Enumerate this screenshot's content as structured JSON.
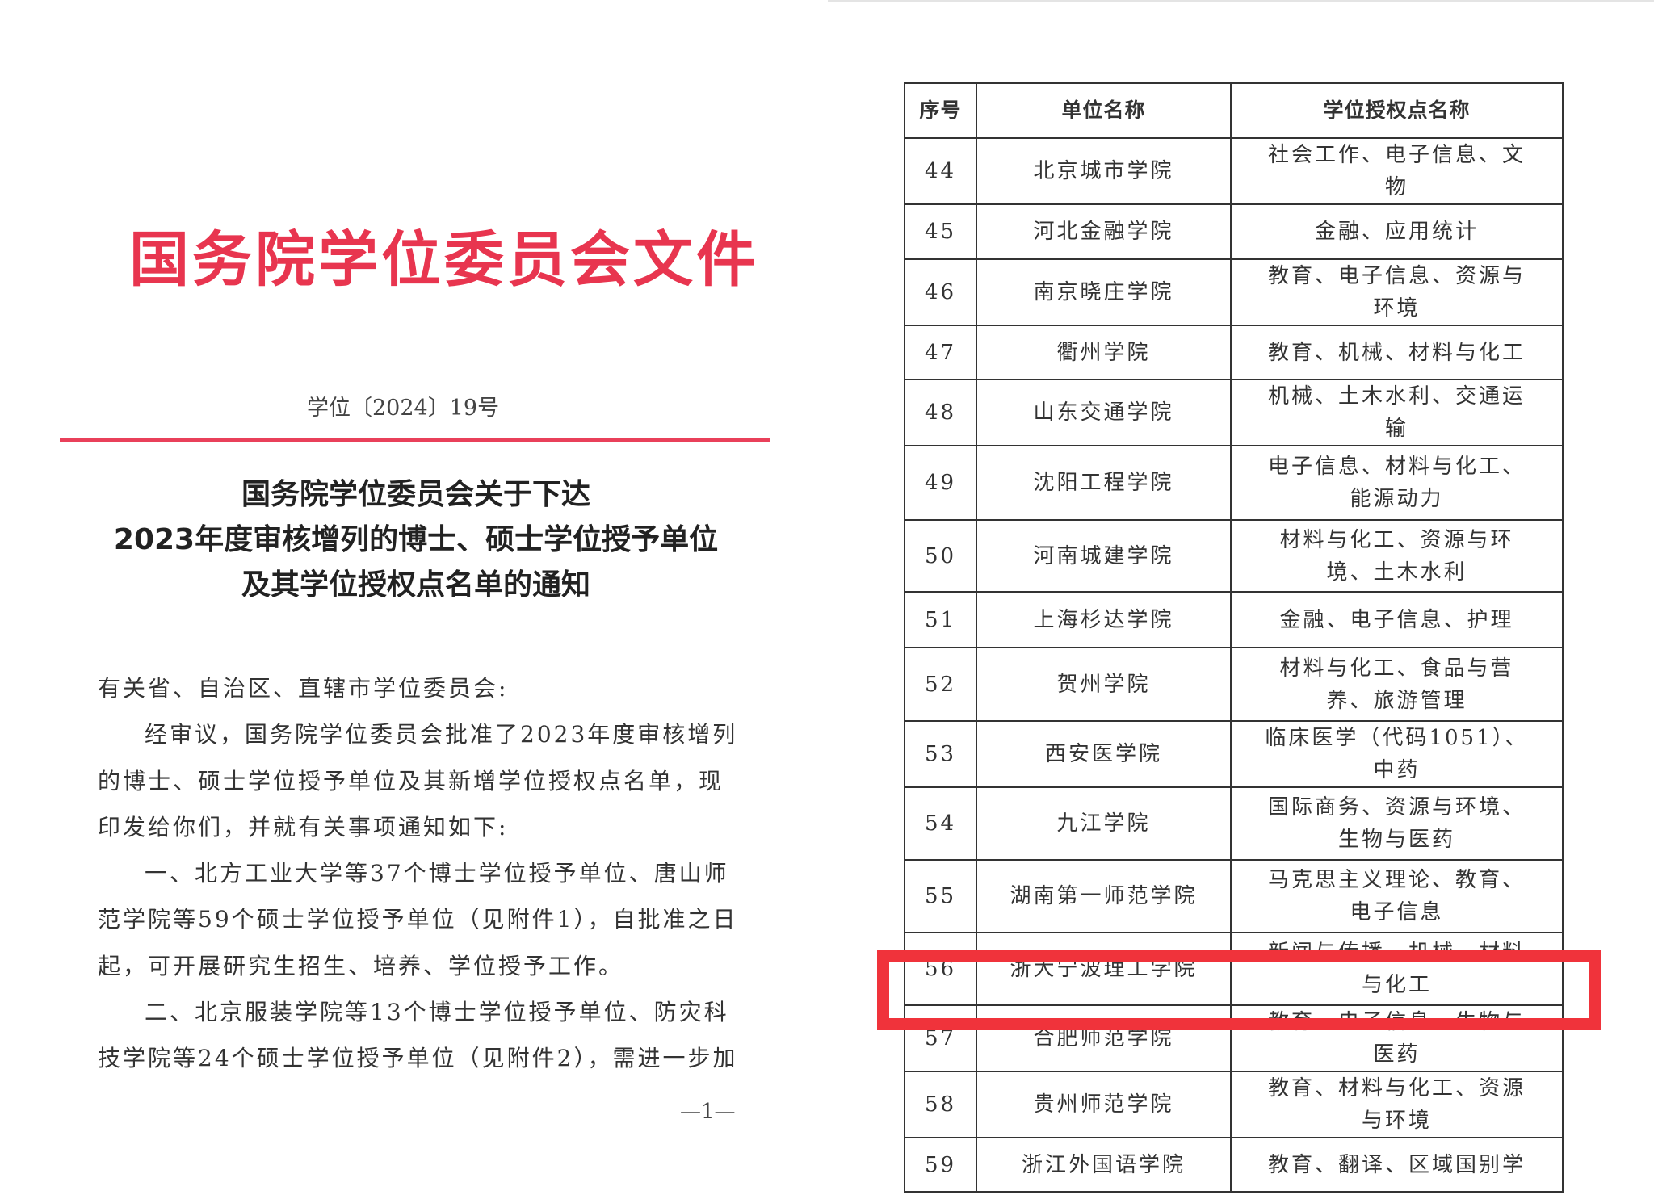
{
  "left_page": {
    "header_title": "国务院学位委员会文件",
    "doc_number": "学位〔2024〕19号",
    "heading_lines": [
      "国务院学位委员会关于下达",
      "2023年度审核增列的博士、硕士学位授予单位",
      "及其学位授权点名单的通知"
    ],
    "salutation": "有关省、自治区、直辖市学位委员会:",
    "paragraphs": [
      "经审议，国务院学位委员会批准了2023年度审核增列的博士、硕士学位授予单位及其新增学位授权点名单，现印发给你们，并就有关事项通知如下:",
      "一、北方工业大学等37个博士学位授予单位、唐山师范学院等59个硕士学位授予单位（见附件1），自批准之日起，可开展研究生招生、培养、学位授予工作。",
      "二、北京服装学院等13个博士学位授予单位、防灾科技学院等24个硕士学位授予单位（见附件2），需进一步加"
    ],
    "page_number": "—1—"
  },
  "table": {
    "headers": [
      "序号",
      "单位名称",
      "学位授权点名称"
    ],
    "rows": [
      {
        "no": "44",
        "unit": "北京城市学院",
        "points": "社会工作、电子信息、文物"
      },
      {
        "no": "45",
        "unit": "河北金融学院",
        "points": "金融、应用统计"
      },
      {
        "no": "46",
        "unit": "南京晓庄学院",
        "points": "教育、电子信息、资源与环境"
      },
      {
        "no": "47",
        "unit": "衢州学院",
        "points": "教育、机械、材料与化工"
      },
      {
        "no": "48",
        "unit": "山东交通学院",
        "points": "机械、土木水利、交通运输"
      },
      {
        "no": "49",
        "unit": "沈阳工程学院",
        "points": "电子信息、材料与化工、能源动力"
      },
      {
        "no": "50",
        "unit": "河南城建学院",
        "points": "材料与化工、资源与环境、土木水利"
      },
      {
        "no": "51",
        "unit": "上海杉达学院",
        "points": "金融、电子信息、护理"
      },
      {
        "no": "52",
        "unit": "贺州学院",
        "points": "材料与化工、食品与营养、旅游管理"
      },
      {
        "no": "53",
        "unit": "西安医学院",
        "points": "临床医学（代码1051）、中药"
      },
      {
        "no": "54",
        "unit": "九江学院",
        "points": "国际商务、资源与环境、生物与医药"
      },
      {
        "no": "55",
        "unit": "湖南第一师范学院",
        "points": "马克思主义理论、教育、电子信息"
      },
      {
        "no": "56",
        "unit": "浙大宁波理工学院",
        "points": "新闻与传播、机械、材料与化工"
      },
      {
        "no": "57",
        "unit": "合肥师范学院",
        "points": "教育、电子信息、生物与医药"
      },
      {
        "no": "58",
        "unit": "贵州师范学院",
        "points": "教育、材料与化工、资源与环境"
      },
      {
        "no": "59",
        "unit": "浙江外国语学院",
        "points": "教育、翻译、区域国别学"
      }
    ],
    "highlighted_row_no": "57",
    "highlight_color": "#f0333b"
  }
}
